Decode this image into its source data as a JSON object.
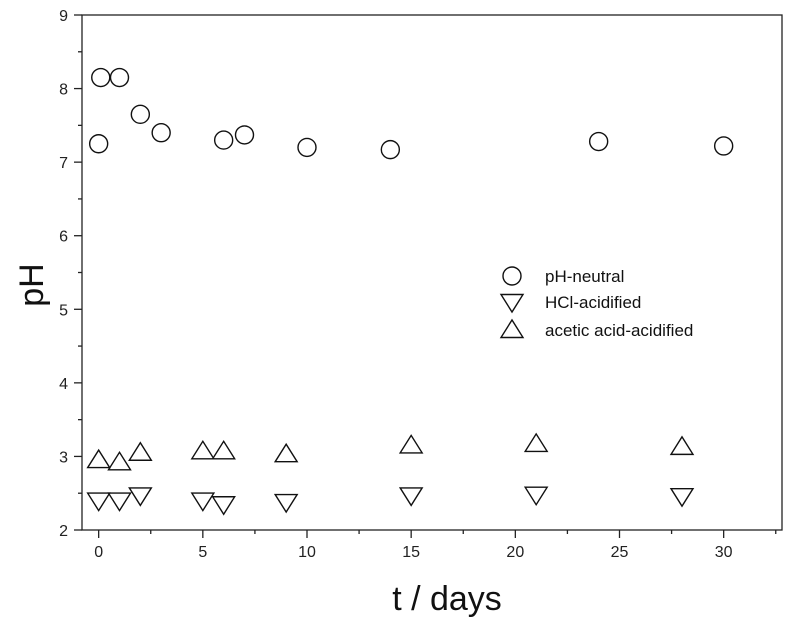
{
  "chart_data": {
    "type": "scatter",
    "title": "",
    "xlabel": "t / days",
    "ylabel": "pH",
    "xlim": [
      -0.8,
      32.8
    ],
    "ylim": [
      2,
      9
    ],
    "xticks": [
      0,
      5,
      10,
      15,
      20,
      25,
      30
    ],
    "yticks": [
      2,
      3,
      4,
      5,
      6,
      7,
      8,
      9
    ],
    "grid": false,
    "legend_position": "right-middle",
    "series": [
      {
        "name": "pH-neutral",
        "marker": "circle",
        "x": [
          0,
          0.1,
          1,
          2,
          3,
          6,
          7,
          10,
          14,
          24,
          30
        ],
        "y": [
          7.25,
          8.15,
          8.15,
          7.65,
          7.4,
          7.3,
          7.37,
          7.2,
          7.17,
          7.28,
          7.22
        ]
      },
      {
        "name": "HCl-acidified",
        "marker": "triangle-down",
        "x": [
          0,
          1,
          2,
          5,
          6,
          9,
          15,
          21,
          28
        ],
        "y": [
          2.4,
          2.4,
          2.47,
          2.4,
          2.35,
          2.38,
          2.47,
          2.48,
          2.46
        ]
      },
      {
        "name": "acetic acid-acidified",
        "marker": "triangle-up",
        "x": [
          0,
          1,
          2,
          5,
          6,
          9,
          15,
          21,
          28
        ],
        "y": [
          2.95,
          2.92,
          3.05,
          3.07,
          3.07,
          3.03,
          3.15,
          3.17,
          3.13
        ]
      }
    ]
  }
}
